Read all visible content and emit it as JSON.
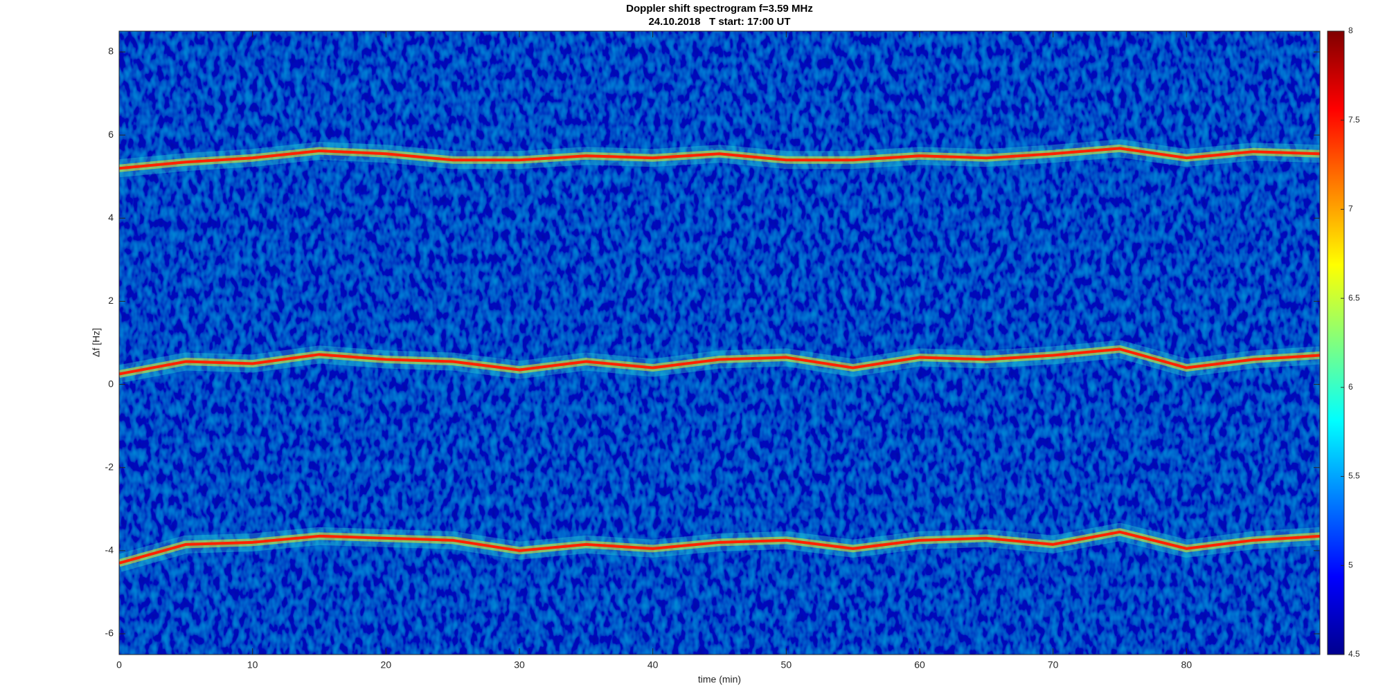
{
  "chart_data": {
    "type": "spectrogram",
    "title": "Doppler shift spectrogram f=3.59 MHz",
    "subtitle": "24.10.2018   T start: 17:00 UT",
    "x_label": "time (min)",
    "y_label": "Δf [Hz]",
    "xlim": [
      0,
      90
    ],
    "xticks": [
      0,
      10,
      20,
      30,
      40,
      50,
      60,
      70,
      80
    ],
    "ylim": [
      -6.5,
      8.5
    ],
    "yticks": [
      -6,
      -4,
      -2,
      0,
      2,
      4,
      6,
      8
    ],
    "clim": [
      4.5,
      8
    ],
    "cticks": [
      4.5,
      5,
      5.5,
      6,
      6.5,
      7,
      7.5,
      8
    ],
    "colormap": "jet",
    "x": [
      0,
      5,
      10,
      15,
      20,
      25,
      30,
      35,
      40,
      45,
      50,
      55,
      60,
      65,
      70,
      75,
      80,
      85,
      90
    ],
    "series": [
      {
        "color": "#ff2200",
        "values": [
          5.2,
          5.35,
          5.45,
          5.62,
          5.55,
          5.4,
          5.4,
          5.5,
          5.45,
          5.55,
          5.4,
          5.4,
          5.5,
          5.45,
          5.55,
          5.68,
          5.45,
          5.6,
          5.55
        ]
      },
      {
        "color": "#ff2200",
        "values": [
          0.25,
          0.55,
          0.5,
          0.72,
          0.6,
          0.55,
          0.35,
          0.55,
          0.4,
          0.6,
          0.65,
          0.4,
          0.65,
          0.6,
          0.7,
          0.85,
          0.4,
          0.6,
          0.7
        ]
      },
      {
        "color": "#ff2200",
        "values": [
          -4.3,
          -3.85,
          -3.8,
          -3.65,
          -3.7,
          -3.75,
          -4.0,
          -3.85,
          -3.95,
          -3.8,
          -3.75,
          -3.95,
          -3.75,
          -3.7,
          -3.85,
          -3.55,
          -3.95,
          -3.75,
          -3.65
        ]
      }
    ]
  }
}
